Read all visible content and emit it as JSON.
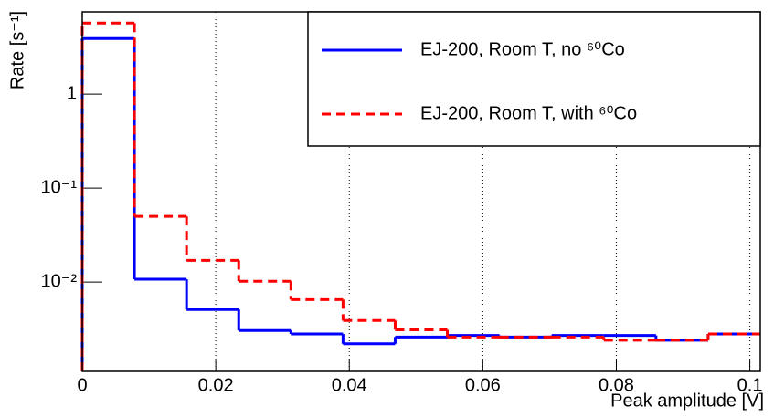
{
  "chart_data": {
    "type": "histogram",
    "xlabel": "Peak amplitude [V]",
    "ylabel": "Rate [s⁻¹]",
    "bins": [
      0,
      0.0078125,
      0.015625,
      0.0234375,
      0.03125,
      0.0390625,
      0.046875,
      0.0546875,
      0.0625,
      0.0703125,
      0.078125,
      0.0859375,
      0.09375,
      0.1015625
    ],
    "series": [
      {
        "name": "EJ-200, Room T, no ⁶⁰Co",
        "color": "#0000ff",
        "dash": "solid",
        "values": [
          3.9,
          0.0107,
          0.0051,
          0.00305,
          0.0028,
          0.0022,
          0.0026,
          0.0027,
          0.0026,
          0.0027,
          0.0027,
          0.0024,
          0.0028
        ]
      },
      {
        "name": "EJ-200, Room T, with ⁶⁰Co",
        "color": "#ff0000",
        "dash": "dashed",
        "values": [
          5.7,
          0.05,
          0.017,
          0.0102,
          0.0065,
          0.0039,
          0.0031,
          0.0026,
          0.0026,
          0.0026,
          0.0024,
          0.0024,
          0.0028
        ]
      }
    ],
    "xlim": [
      0,
      0.1015625
    ],
    "ylim": [
      0.00112,
      7.5
    ],
    "xticks": [
      0,
      0.02,
      0.04,
      0.06,
      0.08,
      0.1
    ],
    "yticks": [
      {
        "value": 0.01,
        "label": "10⁻²"
      },
      {
        "value": 0.1,
        "label": "10⁻¹"
      },
      1
    ],
    "ylog": true,
    "xgrid": true,
    "legend": "top-right"
  }
}
